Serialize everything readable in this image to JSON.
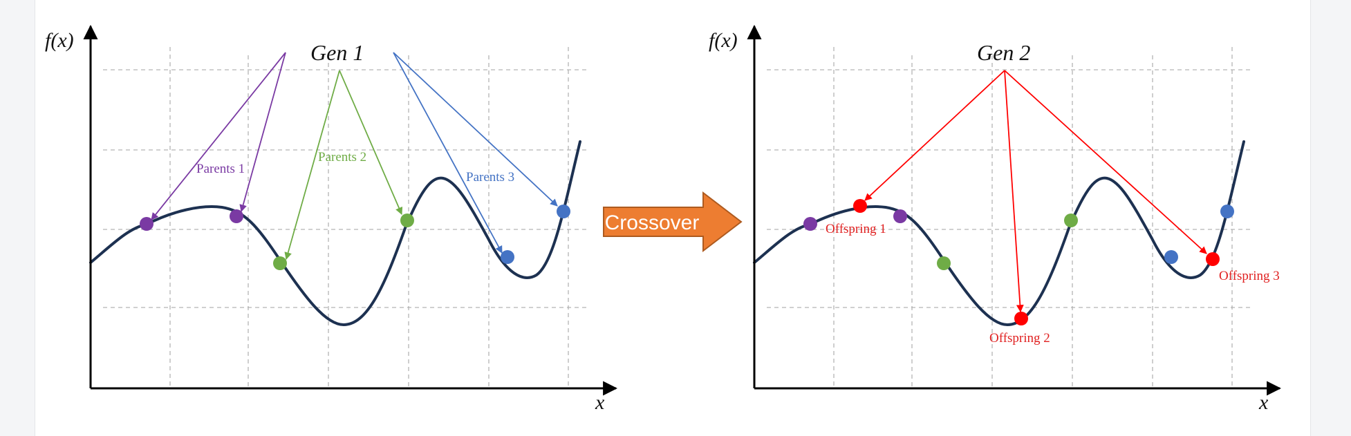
{
  "colors": {
    "curve": "#1d3151",
    "purple": "#7a3aa3",
    "green": "#6fac46",
    "blue": "#4473c4",
    "red": "#ff0000",
    "crossover_fill": "#ed7d31",
    "grid": "#b3b3b3"
  },
  "panel1": {
    "y_label": "f(x)",
    "x_label": "x",
    "title": "Gen 1",
    "parents_1": "Parents 1",
    "parents_2": "Parents 2",
    "parents_3": "Parents 3"
  },
  "crossover": {
    "label": "Crossover"
  },
  "panel2": {
    "y_label": "f(x)",
    "x_label": "x",
    "title": "Gen 2",
    "offspring_1": "Offspring 1",
    "offspring_2": "Offspring 2",
    "offspring_3": "Offspring 3"
  }
}
